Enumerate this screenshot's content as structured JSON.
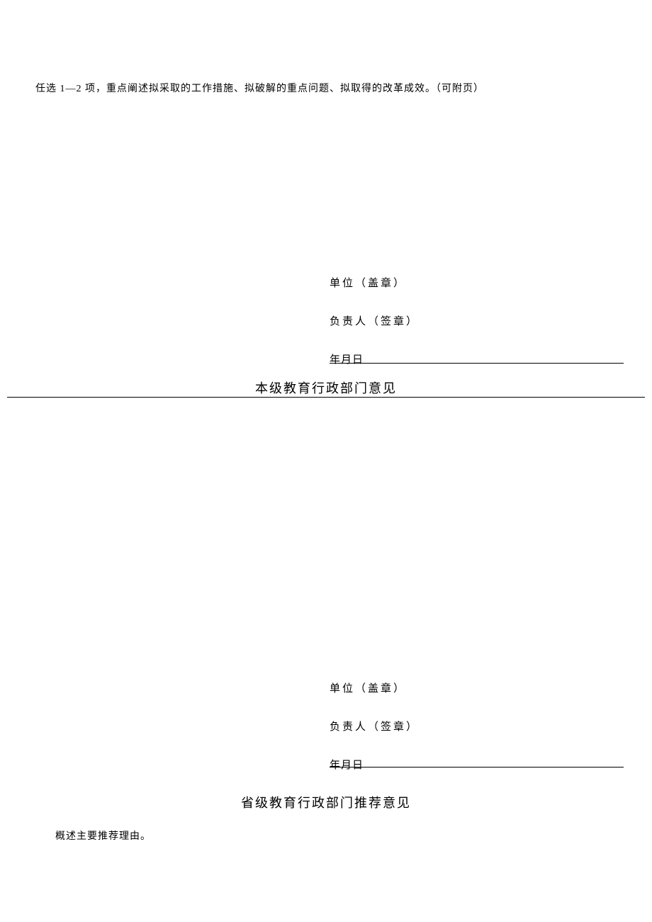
{
  "document": {
    "top_instruction": "任选 1—2 项，重点阐述拟采取的工作措施、拟破解的重点问题、拟取得的改革成效。（可附页）",
    "background_color": "#ffffff",
    "text_color": "#000000",
    "body_font_size": 14,
    "header_font_size": 18,
    "sig_font_size": 15
  },
  "signature_block_1": {
    "unit_stamp": "单位（盖章）",
    "person_sign": "负责人（签章）",
    "date": "年月日"
  },
  "section_header_1": "本级教育行政部门意见",
  "signature_block_2": {
    "unit_stamp": "单位（盖章）",
    "person_sign": "负责人（签章）",
    "date": "年月日"
  },
  "section_header_2": "省级教育行政部门推荐意见",
  "bottom_note": "概述主要推荐理由。"
}
